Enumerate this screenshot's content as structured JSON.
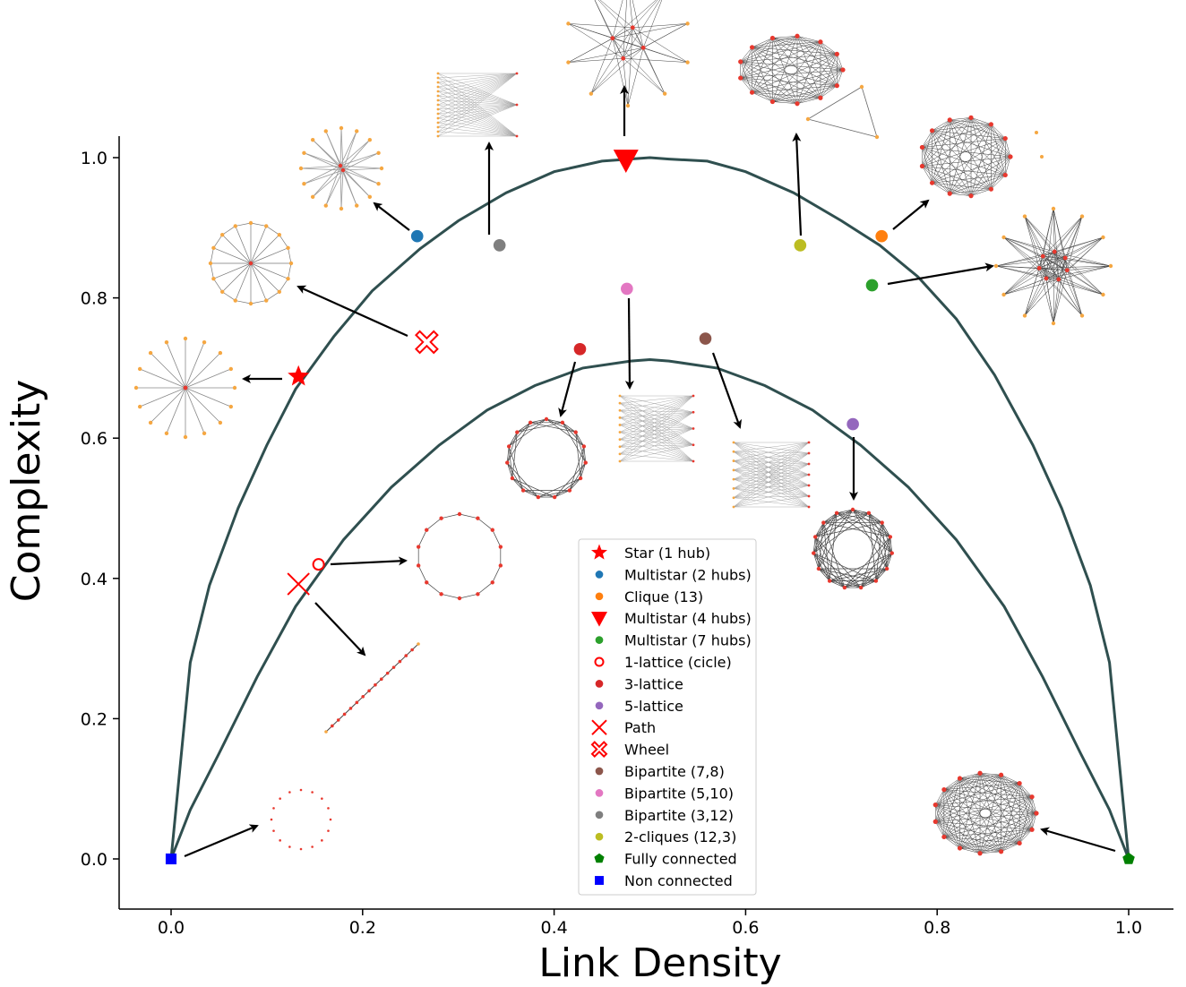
{
  "chart_data": {
    "type": "scatter",
    "xlabel": "Link Density",
    "ylabel": "Complexity",
    "xlim": [
      -0.055,
      1.045
    ],
    "ylim": [
      -0.07,
      1.03
    ],
    "xticks": [
      0.0,
      0.2,
      0.4,
      0.6,
      0.8,
      1.0
    ],
    "yticks": [
      0.0,
      0.2,
      0.4,
      0.6,
      0.8,
      1.0
    ],
    "xtick_labels": [
      "0.0",
      "0.2",
      "0.4",
      "0.6",
      "0.8",
      "1.0"
    ],
    "ytick_labels": [
      "0.0",
      "0.2",
      "0.4",
      "0.6",
      "0.8",
      "1.0"
    ],
    "grid": false,
    "legend_position": "bottom-center",
    "curves": [
      {
        "color": "#2f4f4f",
        "points": [
          [
            0.0,
            0.0
          ],
          [
            0.02,
            0.28
          ],
          [
            0.04,
            0.39
          ],
          [
            0.07,
            0.5
          ],
          [
            0.1,
            0.59
          ],
          [
            0.13,
            0.67
          ],
          [
            0.17,
            0.745
          ],
          [
            0.21,
            0.81
          ],
          [
            0.26,
            0.87
          ],
          [
            0.3,
            0.91
          ],
          [
            0.35,
            0.95
          ],
          [
            0.4,
            0.98
          ],
          [
            0.45,
            0.995
          ],
          [
            0.5,
            1.0
          ],
          [
            0.52,
            0.998
          ],
          [
            0.56,
            0.995
          ],
          [
            0.6,
            0.98
          ],
          [
            0.65,
            0.95
          ],
          [
            0.7,
            0.91
          ],
          [
            0.74,
            0.875
          ],
          [
            0.78,
            0.83
          ],
          [
            0.82,
            0.77
          ],
          [
            0.86,
            0.69
          ],
          [
            0.9,
            0.59
          ],
          [
            0.93,
            0.5
          ],
          [
            0.96,
            0.39
          ],
          [
            0.98,
            0.28
          ],
          [
            1.0,
            0.0
          ]
        ]
      },
      {
        "color": "#2f4f4f",
        "points": [
          [
            0.0,
            0.0
          ],
          [
            0.02,
            0.07
          ],
          [
            0.05,
            0.15
          ],
          [
            0.09,
            0.26
          ],
          [
            0.13,
            0.36
          ],
          [
            0.18,
            0.455
          ],
          [
            0.23,
            0.53
          ],
          [
            0.28,
            0.59
          ],
          [
            0.33,
            0.64
          ],
          [
            0.38,
            0.675
          ],
          [
            0.43,
            0.7
          ],
          [
            0.48,
            0.71
          ],
          [
            0.5,
            0.712
          ],
          [
            0.52,
            0.71
          ],
          [
            0.57,
            0.7
          ],
          [
            0.62,
            0.675
          ],
          [
            0.67,
            0.64
          ],
          [
            0.72,
            0.59
          ],
          [
            0.77,
            0.53
          ],
          [
            0.82,
            0.455
          ],
          [
            0.87,
            0.36
          ],
          [
            0.91,
            0.26
          ],
          [
            0.95,
            0.15
          ],
          [
            0.98,
            0.07
          ],
          [
            1.0,
            0.0
          ]
        ]
      }
    ],
    "series": [
      {
        "name": "Star (1 hub)",
        "marker": "star",
        "color": "#ff0000",
        "x": 0.133,
        "y": 0.688
      },
      {
        "name": "Multistar (2 hubs)",
        "marker": "circle",
        "color": "#1f77b4",
        "x": 0.257,
        "y": 0.888
      },
      {
        "name": "Clique (13)",
        "marker": "circle",
        "color": "#ff7f0e",
        "x": 0.742,
        "y": 0.888
      },
      {
        "name": "Multistar (4 hubs)",
        "marker": "triangle-down",
        "color": "#ff0000",
        "x": 0.475,
        "y": 0.997
      },
      {
        "name": "Multistar (7 hubs)",
        "marker": "circle",
        "color": "#2ca02c",
        "x": 0.732,
        "y": 0.818
      },
      {
        "name": "1-lattice (cicle)",
        "marker": "circle-open",
        "color": "#ff0000",
        "x": 0.154,
        "y": 0.42
      },
      {
        "name": "3-lattice",
        "marker": "circle",
        "color": "#d62728",
        "x": 0.427,
        "y": 0.727
      },
      {
        "name": "5-lattice",
        "marker": "circle",
        "color": "#9467bd",
        "x": 0.712,
        "y": 0.62
      },
      {
        "name": "Path",
        "marker": "x",
        "color": "#ff0000",
        "x": 0.133,
        "y": 0.392
      },
      {
        "name": "Wheel",
        "marker": "x-open",
        "color": "#ff0000",
        "x": 0.267,
        "y": 0.737
      },
      {
        "name": "Bipartite (7,8)",
        "marker": "circle",
        "color": "#8c564b",
        "x": 0.558,
        "y": 0.742
      },
      {
        "name": "Bipartite (5,10)",
        "marker": "circle",
        "color": "#e377c2",
        "x": 0.476,
        "y": 0.813
      },
      {
        "name": "Bipartite (3,12)",
        "marker": "circle",
        "color": "#7f7f7f",
        "x": 0.343,
        "y": 0.875
      },
      {
        "name": "2-cliques (12,3)",
        "marker": "circle",
        "color": "#bcbd22",
        "x": 0.657,
        "y": 0.875
      },
      {
        "name": "Fully connected",
        "marker": "pentagon",
        "color": "#008000",
        "x": 1.0,
        "y": 0.0
      },
      {
        "name": "Non connected",
        "marker": "square",
        "color": "#0000ff",
        "x": 0.0,
        "y": 0.0
      }
    ]
  }
}
